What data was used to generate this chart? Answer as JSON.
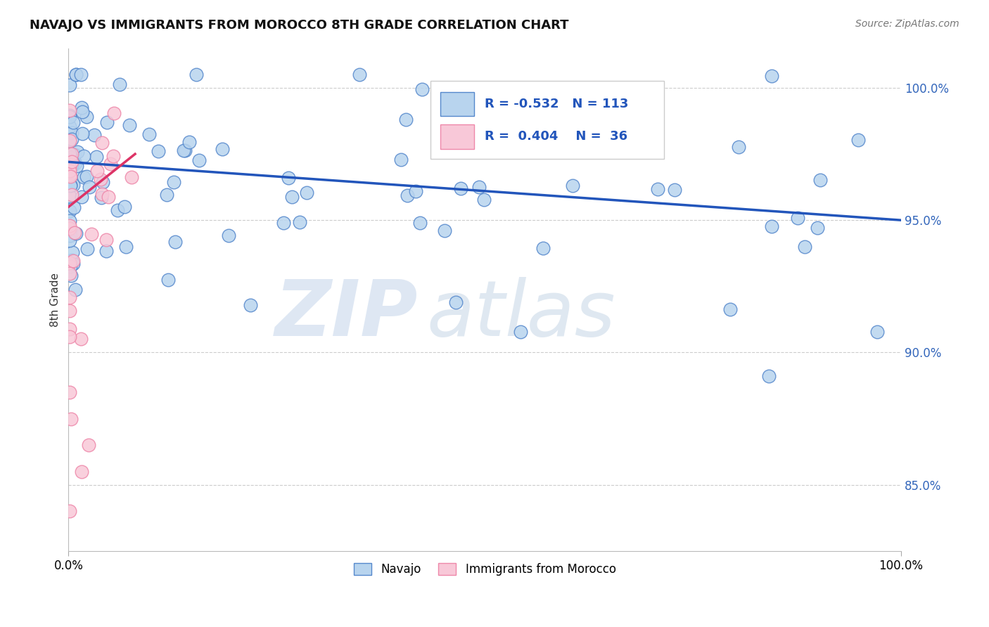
{
  "title": "NAVAJO VS IMMIGRANTS FROM MOROCCO 8TH GRADE CORRELATION CHART",
  "source_text": "Source: ZipAtlas.com",
  "ylabel": "8th Grade",
  "navajo_color": "#b8d4ee",
  "navajo_edge_color": "#5588cc",
  "morocco_color": "#f8c8d8",
  "morocco_edge_color": "#ee88aa",
  "trend_blue_color": "#2255bb",
  "trend_pink_color": "#dd3366",
  "background_color": "#ffffff",
  "grid_color": "#cccccc",
  "legend_R1": "-0.532",
  "legend_N1": "113",
  "legend_R2": "0.404",
  "legend_N2": "36",
  "legend_label1": "Navajo",
  "legend_label2": "Immigrants from Morocco",
  "xmin": 0.0,
  "xmax": 1.0,
  "ymin": 0.825,
  "ymax": 1.015,
  "yticks": [
    0.85,
    0.9,
    0.95,
    1.0
  ],
  "ytick_labels": [
    "85.0%",
    "90.0%",
    "95.0%",
    "100.0%"
  ],
  "nav_trend_x0": 0.0,
  "nav_trend_x1": 1.0,
  "nav_trend_y0": 0.972,
  "nav_trend_y1": 0.95,
  "mor_trend_x0": 0.0,
  "mor_trend_x1": 0.08,
  "mor_trend_y0": 0.955,
  "mor_trend_y1": 0.975
}
